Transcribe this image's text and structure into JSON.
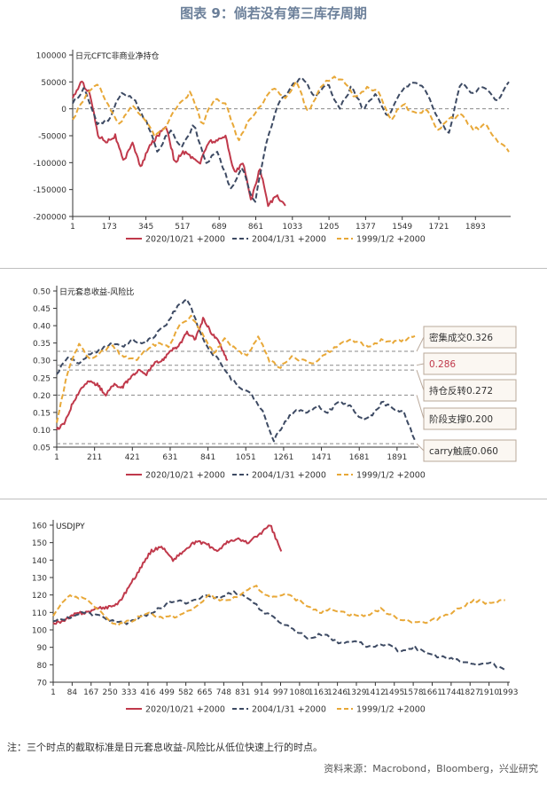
{
  "figure": {
    "title": "图表 9：倘若没有第三库存周期",
    "note": "注：三个时点的截取标准是日元套息收益-风险比从低位快速上行的时点。",
    "source": "资料来源：Macrobond，Bloomberg，兴业研究"
  },
  "colors": {
    "s1": "#c0394b",
    "s2": "#3d4a63",
    "s3": "#e8a838",
    "ref": "#8a8a8a",
    "boxBorder": "#b9a89a",
    "boxFill": "#fbf7f2"
  },
  "chart_data": [
    {
      "type": "line",
      "title": "日元CFTC非商业净持仓",
      "legend": "bottom",
      "series_names": [
        "2020/10/21 +2000",
        "2004/1/31 +2000",
        "1999/1/2 +2000"
      ],
      "x_ticks": [
        "1",
        "173",
        "345",
        "517",
        "689",
        "861",
        "1033",
        "1205",
        "1377",
        "1549",
        "1721",
        "1893"
      ],
      "x_range": [
        1,
        2050
      ],
      "y_ticks": [
        "100000",
        "50000",
        "0",
        "-50000",
        "-100000",
        "-150000",
        "-200000"
      ],
      "ylim": [
        -200000,
        100000
      ],
      "reference_lines": [
        {
          "y": 0
        }
      ],
      "series": [
        {
          "name": "2020/10/21 +2000",
          "x_end": 1000,
          "values": [
            20000,
            50000,
            30000,
            -50000,
            -60000,
            -50000,
            -100000,
            -60000,
            -110000,
            -70000,
            -50000,
            -30000,
            -100000,
            -80000,
            -90000,
            -100000,
            -60000,
            -60000,
            -50000,
            -120000,
            -100000,
            -170000,
            -110000,
            -180000,
            -160000,
            -180000
          ]
        },
        {
          "name": "2004/1/31 +2000",
          "x_end": 2050,
          "values": [
            10000,
            40000,
            -30000,
            -20000,
            30000,
            20000,
            -20000,
            -80000,
            -40000,
            -70000,
            -30000,
            -100000,
            -80000,
            -150000,
            -110000,
            -180000,
            -60000,
            10000,
            40000,
            60000,
            20000,
            50000,
            0,
            40000,
            0,
            30000,
            -20000,
            30000,
            50000,
            40000,
            -10000,
            -50000,
            50000,
            30000,
            40000,
            10000,
            50000
          ]
        },
        {
          "name": "1999/1/2 +2000",
          "x_end": 2050,
          "values": [
            -20000,
            20000,
            50000,
            10000,
            -30000,
            10000,
            -20000,
            -50000,
            -30000,
            10000,
            30000,
            -30000,
            20000,
            10000,
            -60000,
            -20000,
            10000,
            40000,
            20000,
            50000,
            -10000,
            40000,
            60000,
            50000,
            20000,
            40000,
            30000,
            -20000,
            10000,
            -10000,
            0,
            -40000,
            -20000,
            -10000,
            -40000,
            -30000,
            -60000,
            -80000
          ]
        }
      ]
    },
    {
      "type": "line",
      "title": "日元套息收益-风险比",
      "legend": "bottom",
      "series_names": [
        "2020/10/21 +2000",
        "2004/1/31 +2000",
        "1999/1/2 +2000"
      ],
      "x_ticks": [
        "1",
        "211",
        "421",
        "631",
        "841",
        "1051",
        "1261",
        "1471",
        "1681",
        "1891"
      ],
      "x_range": [
        1,
        2000
      ],
      "y_ticks": [
        "0.50",
        "0.45",
        "0.40",
        "0.35",
        "0.30",
        "0.25",
        "0.20",
        "0.15",
        "0.10",
        "0.05"
      ],
      "ylim": [
        0.05,
        0.5
      ],
      "reference_lines": [
        {
          "y": 0.326,
          "label": "密集成交0.326"
        },
        {
          "y": 0.286,
          "label": "0.286"
        },
        {
          "y": 0.272,
          "label": "持仓反转0.272"
        },
        {
          "y": 0.2,
          "label": "阶段支撑0.200"
        },
        {
          "y": 0.06,
          "label": "carry触底0.060"
        }
      ],
      "series": [
        {
          "name": "2020/10/21 +2000",
          "x_end": 950,
          "values": [
            0.1,
            0.12,
            0.18,
            0.22,
            0.24,
            0.23,
            0.2,
            0.23,
            0.22,
            0.25,
            0.27,
            0.26,
            0.29,
            0.3,
            0.33,
            0.34,
            0.38,
            0.36,
            0.42,
            0.38,
            0.35,
            0.3
          ]
        },
        {
          "name": "2004/1/31 +2000",
          "x_end": 1990,
          "values": [
            0.26,
            0.31,
            0.29,
            0.32,
            0.33,
            0.35,
            0.34,
            0.36,
            0.35,
            0.37,
            0.4,
            0.45,
            0.48,
            0.4,
            0.33,
            0.3,
            0.25,
            0.22,
            0.2,
            0.15,
            0.07,
            0.12,
            0.16,
            0.15,
            0.17,
            0.15,
            0.18,
            0.17,
            0.13,
            0.14,
            0.18,
            0.16,
            0.15,
            0.07
          ]
        },
        {
          "name": "1999/1/2 +2000",
          "x_end": 1990,
          "values": [
            0.12,
            0.27,
            0.35,
            0.3,
            0.33,
            0.34,
            0.31,
            0.3,
            0.33,
            0.35,
            0.34,
            0.4,
            0.43,
            0.38,
            0.32,
            0.36,
            0.33,
            0.31,
            0.37,
            0.3,
            0.28,
            0.31,
            0.3,
            0.29,
            0.32,
            0.34,
            0.36,
            0.35,
            0.34,
            0.36,
            0.35,
            0.36,
            0.37
          ]
        }
      ]
    },
    {
      "type": "line",
      "title": "USDJPY",
      "legend": "bottom",
      "series_names": [
        "2020/10/21 +2000",
        "2004/1/31 +2000",
        "1999/1/2 +2000"
      ],
      "x_ticks": [
        "1",
        "84",
        "167",
        "250",
        "333",
        "416",
        "499",
        "582",
        "665",
        "748",
        "831",
        "914",
        "997",
        "1080",
        "1163",
        "1246",
        "1329",
        "1412",
        "1495",
        "1578",
        "1661",
        "1744",
        "1827",
        "1910",
        "1993"
      ],
      "x_range": [
        1,
        1993
      ],
      "y_ticks": [
        "160",
        "150",
        "140",
        "130",
        "120",
        "110",
        "100",
        "90",
        "80",
        "70"
      ],
      "ylim": [
        70,
        160
      ],
      "reference_lines": [],
      "series": [
        {
          "name": "2020/10/21 +2000",
          "x_end": 1000,
          "values": [
            104,
            105,
            109,
            110,
            112,
            113,
            115,
            125,
            135,
            145,
            148,
            140,
            145,
            150,
            150,
            145,
            150,
            152,
            150,
            155,
            160,
            145
          ]
        },
        {
          "name": "2004/1/31 +2000",
          "x_end": 1980,
          "values": [
            105,
            107,
            110,
            108,
            105,
            104,
            108,
            112,
            117,
            115,
            120,
            118,
            122,
            118,
            110,
            105,
            100,
            95,
            98,
            92,
            94,
            90,
            92,
            88,
            90,
            86,
            84,
            82,
            80,
            81,
            77
          ]
        },
        {
          "name": "1999/1/2 +2000",
          "x_end": 1980,
          "values": [
            108,
            120,
            118,
            110,
            103,
            105,
            110,
            107,
            108,
            112,
            120,
            116,
            120,
            125,
            118,
            120,
            116,
            110,
            112,
            109,
            108,
            112,
            107,
            105,
            104,
            108,
            112,
            117,
            115,
            117
          ]
        }
      ]
    }
  ]
}
